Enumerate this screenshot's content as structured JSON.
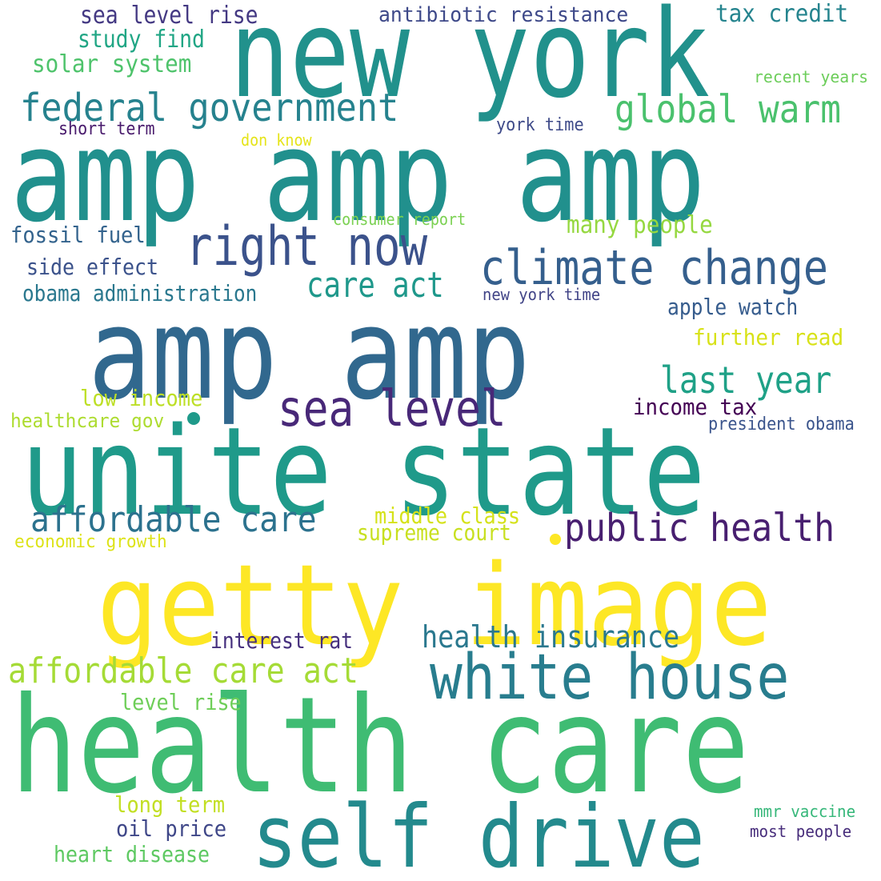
{
  "words": [
    {
      "text": "new york",
      "color": "#21918c"
    },
    {
      "text": "amp amp amp",
      "color": "#21908d"
    },
    {
      "text": "amp amp",
      "color": "#31688e"
    },
    {
      "text": "unite state",
      "color": "#1f9a8a"
    },
    {
      "text": "getty image",
      "color": "#fde725"
    },
    {
      "text": "health care",
      "color": "#3fbc73"
    },
    {
      "text": "self drive",
      "color": "#238a8d"
    },
    {
      "text": "white house",
      "color": "#287d8e"
    },
    {
      "text": "right now",
      "color": "#3b528b"
    },
    {
      "text": "climate change",
      "color": "#355f8d"
    },
    {
      "text": "federal government",
      "color": "#26828e"
    },
    {
      "text": "global warm",
      "color": "#4ac16d"
    },
    {
      "text": "sea level",
      "color": "#482878"
    },
    {
      "text": "public health",
      "color": "#481f70"
    },
    {
      "text": "affordable care",
      "color": "#2c728e"
    },
    {
      "text": "affordable care act",
      "color": "#a5db36"
    },
    {
      "text": "health insurance",
      "color": "#2a788e"
    },
    {
      "text": "last year",
      "color": "#1fa187"
    },
    {
      "text": "care act",
      "color": "#1f988b"
    },
    {
      "text": "sea level rise",
      "color": "#443983"
    },
    {
      "text": "antibiotic resistance",
      "color": "#3e4989"
    },
    {
      "text": "tax credit",
      "color": "#25848e"
    },
    {
      "text": "study find",
      "color": "#21a685"
    },
    {
      "text": "solar system",
      "color": "#4ec36b"
    },
    {
      "text": "recent years",
      "color": "#6ccd5a"
    },
    {
      "text": "short term",
      "color": "#481a6c"
    },
    {
      "text": "york time",
      "color": "#3e4a89"
    },
    {
      "text": "don know",
      "color": "#e5e419"
    },
    {
      "text": "consumer report",
      "color": "#7ad151"
    },
    {
      "text": "fossil fuel",
      "color": "#33638d"
    },
    {
      "text": "many people",
      "color": "#95d840"
    },
    {
      "text": "side effect",
      "color": "#3b528b"
    },
    {
      "text": "obama administration",
      "color": "#2a788e"
    },
    {
      "text": "new york time",
      "color": "#414487"
    },
    {
      "text": "apple watch",
      "color": "#365c8d"
    },
    {
      "text": "further read",
      "color": "#d8e219"
    },
    {
      "text": "low income",
      "color": "#bddf26"
    },
    {
      "text": "income tax",
      "color": "#440154"
    },
    {
      "text": "healthcare gov",
      "color": "#addc30"
    },
    {
      "text": "president obama",
      "color": "#3a548c"
    },
    {
      "text": "middle class",
      "color": "#d5e21a"
    },
    {
      "text": "supreme court",
      "color": "#c8e020"
    },
    {
      "text": "economic growth",
      "color": "#dde318"
    },
    {
      "text": "interest rat",
      "color": "#46307e"
    },
    {
      "text": "level rise",
      "color": "#6ece58"
    },
    {
      "text": "long term",
      "color": "#c2df23"
    },
    {
      "text": "oil price",
      "color": "#3f4788"
    },
    {
      "text": "heart disease",
      "color": "#5ec962"
    },
    {
      "text": "mmr vaccine",
      "color": "#35b779"
    },
    {
      "text": "most people",
      "color": "#472d7b"
    }
  ],
  "dots": [
    {
      "color": "#1f9a8a"
    },
    {
      "color": "#fde725"
    }
  ]
}
